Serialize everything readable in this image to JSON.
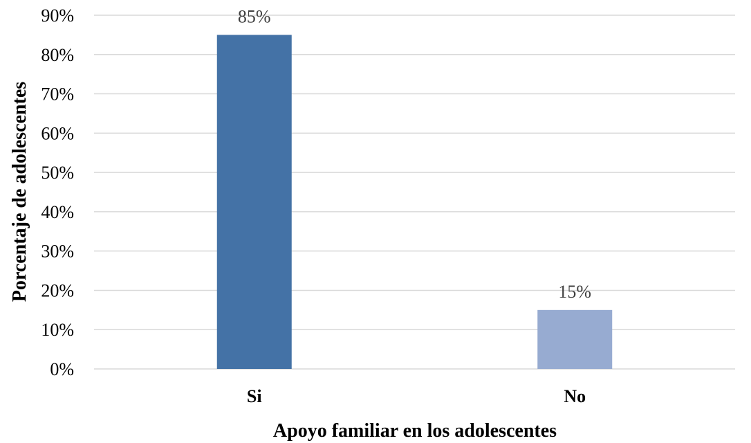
{
  "chart_data": {
    "type": "bar",
    "categories": [
      "Si",
      "No"
    ],
    "values": [
      85,
      15
    ],
    "value_labels": [
      "85%",
      "15%"
    ],
    "bar_colors": [
      "#4472A6",
      "#97ABD1"
    ],
    "xlabel": "Apoyo familiar en los adolescentes",
    "ylabel": "Porcentaje de adolescentes",
    "ylim": [
      0,
      90
    ],
    "yticks": [
      0,
      10,
      20,
      30,
      40,
      50,
      60,
      70,
      80,
      90
    ],
    "ytick_labels": [
      "0%",
      "10%",
      "20%",
      "30%",
      "40%",
      "50%",
      "60%",
      "70%",
      "80%",
      "90%"
    ],
    "grid": true,
    "gridline_color": "#D9D9D9",
    "legend": "none"
  }
}
